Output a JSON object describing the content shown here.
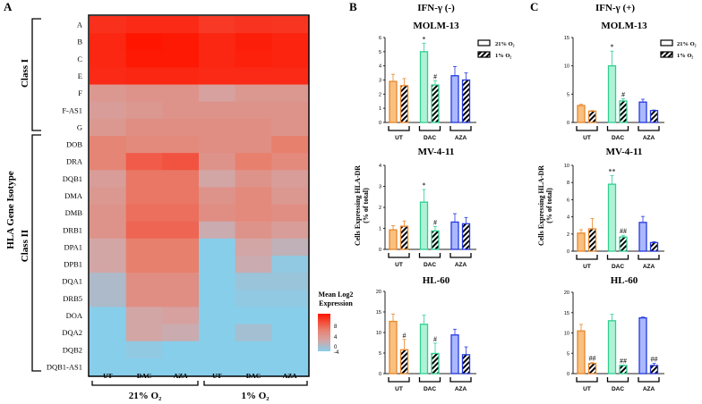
{
  "panel_labels": {
    "a": "A",
    "b": "B",
    "c": "C"
  },
  "heatmap": {
    "type": "heatmap",
    "y_axis_title": "HLA Gene Isotype",
    "row_groups": [
      {
        "label": "Class I",
        "rows": [
          "A",
          "B",
          "C",
          "E",
          "F",
          "F-AS1",
          "G"
        ]
      },
      {
        "label": "Class II",
        "rows": [
          "DOB",
          "DRA",
          "DQB1",
          "DMA",
          "DMB",
          "DRB1",
          "DPA1",
          "DPB1",
          "DQA1",
          "DRB5",
          "DOA",
          "DQA2",
          "DQB2",
          "DQB1-AS1"
        ]
      }
    ],
    "rows": [
      "A",
      "B",
      "C",
      "E",
      "F",
      "F-AS1",
      "G",
      "DOB",
      "DRA",
      "DQB1",
      "DMA",
      "DMB",
      "DRB1",
      "DPA1",
      "DPB1",
      "DQA1",
      "DRB5",
      "DOA",
      "DQA2",
      "DQB2",
      "DQB1-AS1"
    ],
    "columns": [
      "UT",
      "DAC",
      "AZA",
      "UT",
      "DAC",
      "AZA"
    ],
    "column_groups": [
      "21% O₂",
      "1% O₂"
    ],
    "values": [
      [
        8.5,
        8.8,
        8.8,
        8.0,
        8.3,
        8.2
      ],
      [
        9.0,
        10.0,
        9.8,
        9.0,
        9.5,
        9.2
      ],
      [
        9.0,
        9.8,
        9.8,
        9.0,
        9.4,
        9.2
      ],
      [
        8.8,
        9.0,
        9.0,
        8.8,
        8.8,
        8.8
      ],
      [
        1.5,
        2.0,
        2.0,
        0.5,
        1.5,
        1.5
      ],
      [
        1.0,
        1.5,
        2.0,
        2.0,
        2.0,
        2.0
      ],
      [
        1.5,
        2.5,
        2.5,
        2.5,
        2.5,
        2.0
      ],
      [
        3.5,
        3.0,
        3.0,
        2.5,
        2.5,
        4.0
      ],
      [
        3.5,
        6.0,
        6.5,
        2.0,
        4.0,
        3.0
      ],
      [
        1.0,
        4.5,
        4.5,
        0.0,
        2.0,
        1.0
      ],
      [
        1.5,
        4.5,
        4.5,
        2.0,
        3.0,
        1.5
      ],
      [
        2.0,
        5.0,
        5.0,
        2.5,
        3.0,
        2.5
      ],
      [
        2.0,
        5.5,
        5.5,
        -0.5,
        2.0,
        1.0
      ],
      [
        0.0,
        4.0,
        4.0,
        -4.0,
        0.0,
        -1.0
      ],
      [
        0.0,
        4.0,
        4.0,
        -4.0,
        -0.5,
        -3.5
      ],
      [
        -2.0,
        2.5,
        2.5,
        -4.0,
        -3.0,
        -3.0
      ],
      [
        -2.0,
        2.5,
        2.5,
        -4.0,
        -3.5,
        -3.5
      ],
      [
        -4.0,
        0.0,
        0.5,
        -4.0,
        -4.0,
        -4.0
      ],
      [
        -4.0,
        0.0,
        -0.5,
        -4.0,
        -2.5,
        -4.0
      ],
      [
        -4.0,
        -3.5,
        -4.0,
        -4.0,
        -4.0,
        -4.0
      ],
      [
        -4.0,
        -4.0,
        -4.0,
        -4.0,
        -4.0,
        -4.0
      ]
    ],
    "legend": {
      "title_line1": "Mean Log2",
      "title_line2": "Expression",
      "ticks": [
        "8",
        "4",
        "0",
        "-4"
      ],
      "range": [
        -4,
        10
      ]
    },
    "colors": {
      "low": "#87ceeb",
      "mid": "#d3a6a6",
      "midhigh": "#e8806e",
      "high": "#ff1500"
    }
  },
  "bar_panels": {
    "b_title": "IFN-γ (-)",
    "c_title": "IFN-γ (+)",
    "ylabel_line1": "Cells Expressing HLA-DR",
    "ylabel_line2": "(% of total)",
    "legend": {
      "normoxia": "21% O₂",
      "hypoxia": "1% O₂"
    },
    "group_colors": {
      "UT": {
        "fill": "#f9c080",
        "stroke": "#e8862a"
      },
      "DAC": {
        "fill": "#b0f2d6",
        "stroke": "#2fcf92"
      },
      "AZA": {
        "fill": "#aab8ff",
        "stroke": "#2438e0"
      }
    }
  },
  "chart_data": [
    {
      "type": "bar",
      "panel": "B",
      "title": "MOLM-13",
      "categories": [
        "UT",
        "DAC",
        "AZA"
      ],
      "ylim": [
        0,
        6
      ],
      "yticks": [
        "0",
        "1",
        "2",
        "3",
        "4",
        "5",
        "6"
      ],
      "series": [
        {
          "name": "21% O₂",
          "values": [
            2.9,
            5.0,
            3.3
          ],
          "errors": [
            0.5,
            0.6,
            0.65
          ],
          "annotations": [
            "",
            "*",
            ""
          ]
        },
        {
          "name": "1% O₂",
          "values": [
            2.6,
            2.65,
            3.0
          ],
          "errors": [
            0.5,
            0.3,
            0.5
          ],
          "annotations": [
            "",
            "#",
            ""
          ]
        }
      ]
    },
    {
      "type": "bar",
      "panel": "B",
      "title": "MV-4-11",
      "categories": [
        "UT",
        "DAC",
        "AZA"
      ],
      "ylim": [
        0,
        4
      ],
      "yticks": [
        "0",
        "1",
        "2",
        "3",
        "4"
      ],
      "series": [
        {
          "name": "21% O₂",
          "values": [
            0.93,
            2.25,
            1.3
          ],
          "errors": [
            0.2,
            0.6,
            0.4
          ],
          "annotations": [
            "",
            "*",
            ""
          ]
        },
        {
          "name": "1% O₂",
          "values": [
            1.1,
            0.88,
            1.22
          ],
          "errors": [
            0.25,
            0.2,
            0.3
          ],
          "annotations": [
            "",
            "#",
            ""
          ]
        }
      ]
    },
    {
      "type": "bar",
      "panel": "B",
      "title": "HL-60",
      "categories": [
        "UT",
        "DAC",
        "AZA"
      ],
      "ylim": [
        0,
        20
      ],
      "yticks": [
        "0",
        "5",
        "10",
        "15",
        "20"
      ],
      "series": [
        {
          "name": "21% O₂",
          "values": [
            12.7,
            12.0,
            9.4
          ],
          "errors": [
            1.8,
            2.2,
            1.4
          ],
          "annotations": [
            "",
            "",
            ""
          ]
        },
        {
          "name": "1% O₂",
          "values": [
            5.8,
            4.9,
            4.6
          ],
          "errors": [
            2.5,
            2.5,
            1.9
          ],
          "annotations": [
            "#",
            "#",
            ""
          ]
        }
      ]
    },
    {
      "type": "bar",
      "panel": "C",
      "title": "MOLM-13",
      "categories": [
        "UT",
        "DAC",
        "AZA"
      ],
      "ylim": [
        0,
        15
      ],
      "yticks": [
        "0",
        "5",
        "10",
        "15"
      ],
      "series": [
        {
          "name": "21% O₂",
          "values": [
            3.0,
            10.0,
            3.6
          ],
          "errors": [
            0.2,
            2.6,
            0.5
          ],
          "annotations": [
            "",
            "*",
            ""
          ]
        },
        {
          "name": "1% O₂",
          "values": [
            2.0,
            3.8,
            2.1
          ],
          "errors": [
            0.1,
            0.4,
            0.1
          ],
          "annotations": [
            "",
            "#",
            ""
          ]
        }
      ]
    },
    {
      "type": "bar",
      "panel": "C",
      "title": "MV-4-11",
      "categories": [
        "UT",
        "DAC",
        "AZA"
      ],
      "ylim": [
        0,
        10
      ],
      "yticks": [
        "0",
        "2",
        "4",
        "6",
        "8",
        "10"
      ],
      "series": [
        {
          "name": "21% O₂",
          "values": [
            2.1,
            7.8,
            3.35
          ],
          "errors": [
            0.4,
            1.0,
            0.7
          ],
          "annotations": [
            "",
            "**",
            ""
          ]
        },
        {
          "name": "1% O₂",
          "values": [
            2.6,
            1.65,
            1.0
          ],
          "errors": [
            1.2,
            0.2,
            0.1
          ],
          "annotations": [
            "",
            "##",
            ""
          ]
        }
      ]
    },
    {
      "type": "bar",
      "panel": "C",
      "title": "HL-60",
      "categories": [
        "UT",
        "DAC",
        "AZA"
      ],
      "ylim": [
        0,
        20
      ],
      "yticks": [
        "0",
        "5",
        "10",
        "15",
        "20"
      ],
      "series": [
        {
          "name": "21% O₂",
          "values": [
            10.5,
            13.0,
            13.7
          ],
          "errors": [
            1.6,
            1.6,
            0.2
          ],
          "annotations": [
            "",
            "",
            ""
          ]
        },
        {
          "name": "1% O₂",
          "values": [
            2.5,
            2.0,
            2.0
          ],
          "errors": [
            0.2,
            0.1,
            0.5
          ],
          "annotations": [
            "##",
            "##",
            "##"
          ]
        }
      ]
    }
  ]
}
